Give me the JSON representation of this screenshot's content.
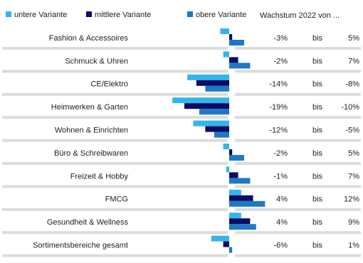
{
  "chart_data": {
    "type": "bar",
    "orientation": "horizontal",
    "column_header": "Wachstum 2022 von ...",
    "range_connector": "bis",
    "categories": [
      "Fashion & Accessoires",
      "Schmuck & Uhren",
      "CE/Elektro",
      "Heimwerken & Garten",
      "Wohnen & Einrichten",
      "Büro & Schreibwaren",
      "Freizeit & Hobby",
      "FMCG",
      "Gesundheit & Wellness",
      "Sortimentsbereiche gesamt"
    ],
    "series": [
      {
        "name": "untere Variante",
        "color": "#33b5ea",
        "values": [
          -3,
          -2,
          -14,
          -19,
          -12,
          -2,
          -1,
          4,
          4,
          -6
        ],
        "value_labels": [
          "-3%",
          "-2%",
          "-14%",
          "-19%",
          "-12%",
          "-2%",
          "-1%",
          "4%",
          "4%",
          "-6%"
        ]
      },
      {
        "name": "mittlere Variante",
        "color": "#0c0c66",
        "values": [
          1,
          3,
          -11,
          -15,
          -8,
          1,
          3,
          8,
          7,
          -2
        ]
      },
      {
        "name": "obere Variante",
        "color": "#1f78c4",
        "values": [
          5,
          7,
          -8,
          -10,
          -5,
          5,
          7,
          12,
          9,
          1
        ],
        "value_labels": [
          "5%",
          "7%",
          "-8%",
          "-10%",
          "-5%",
          "5%",
          "7%",
          "12%",
          "9%",
          "1%"
        ]
      }
    ]
  }
}
